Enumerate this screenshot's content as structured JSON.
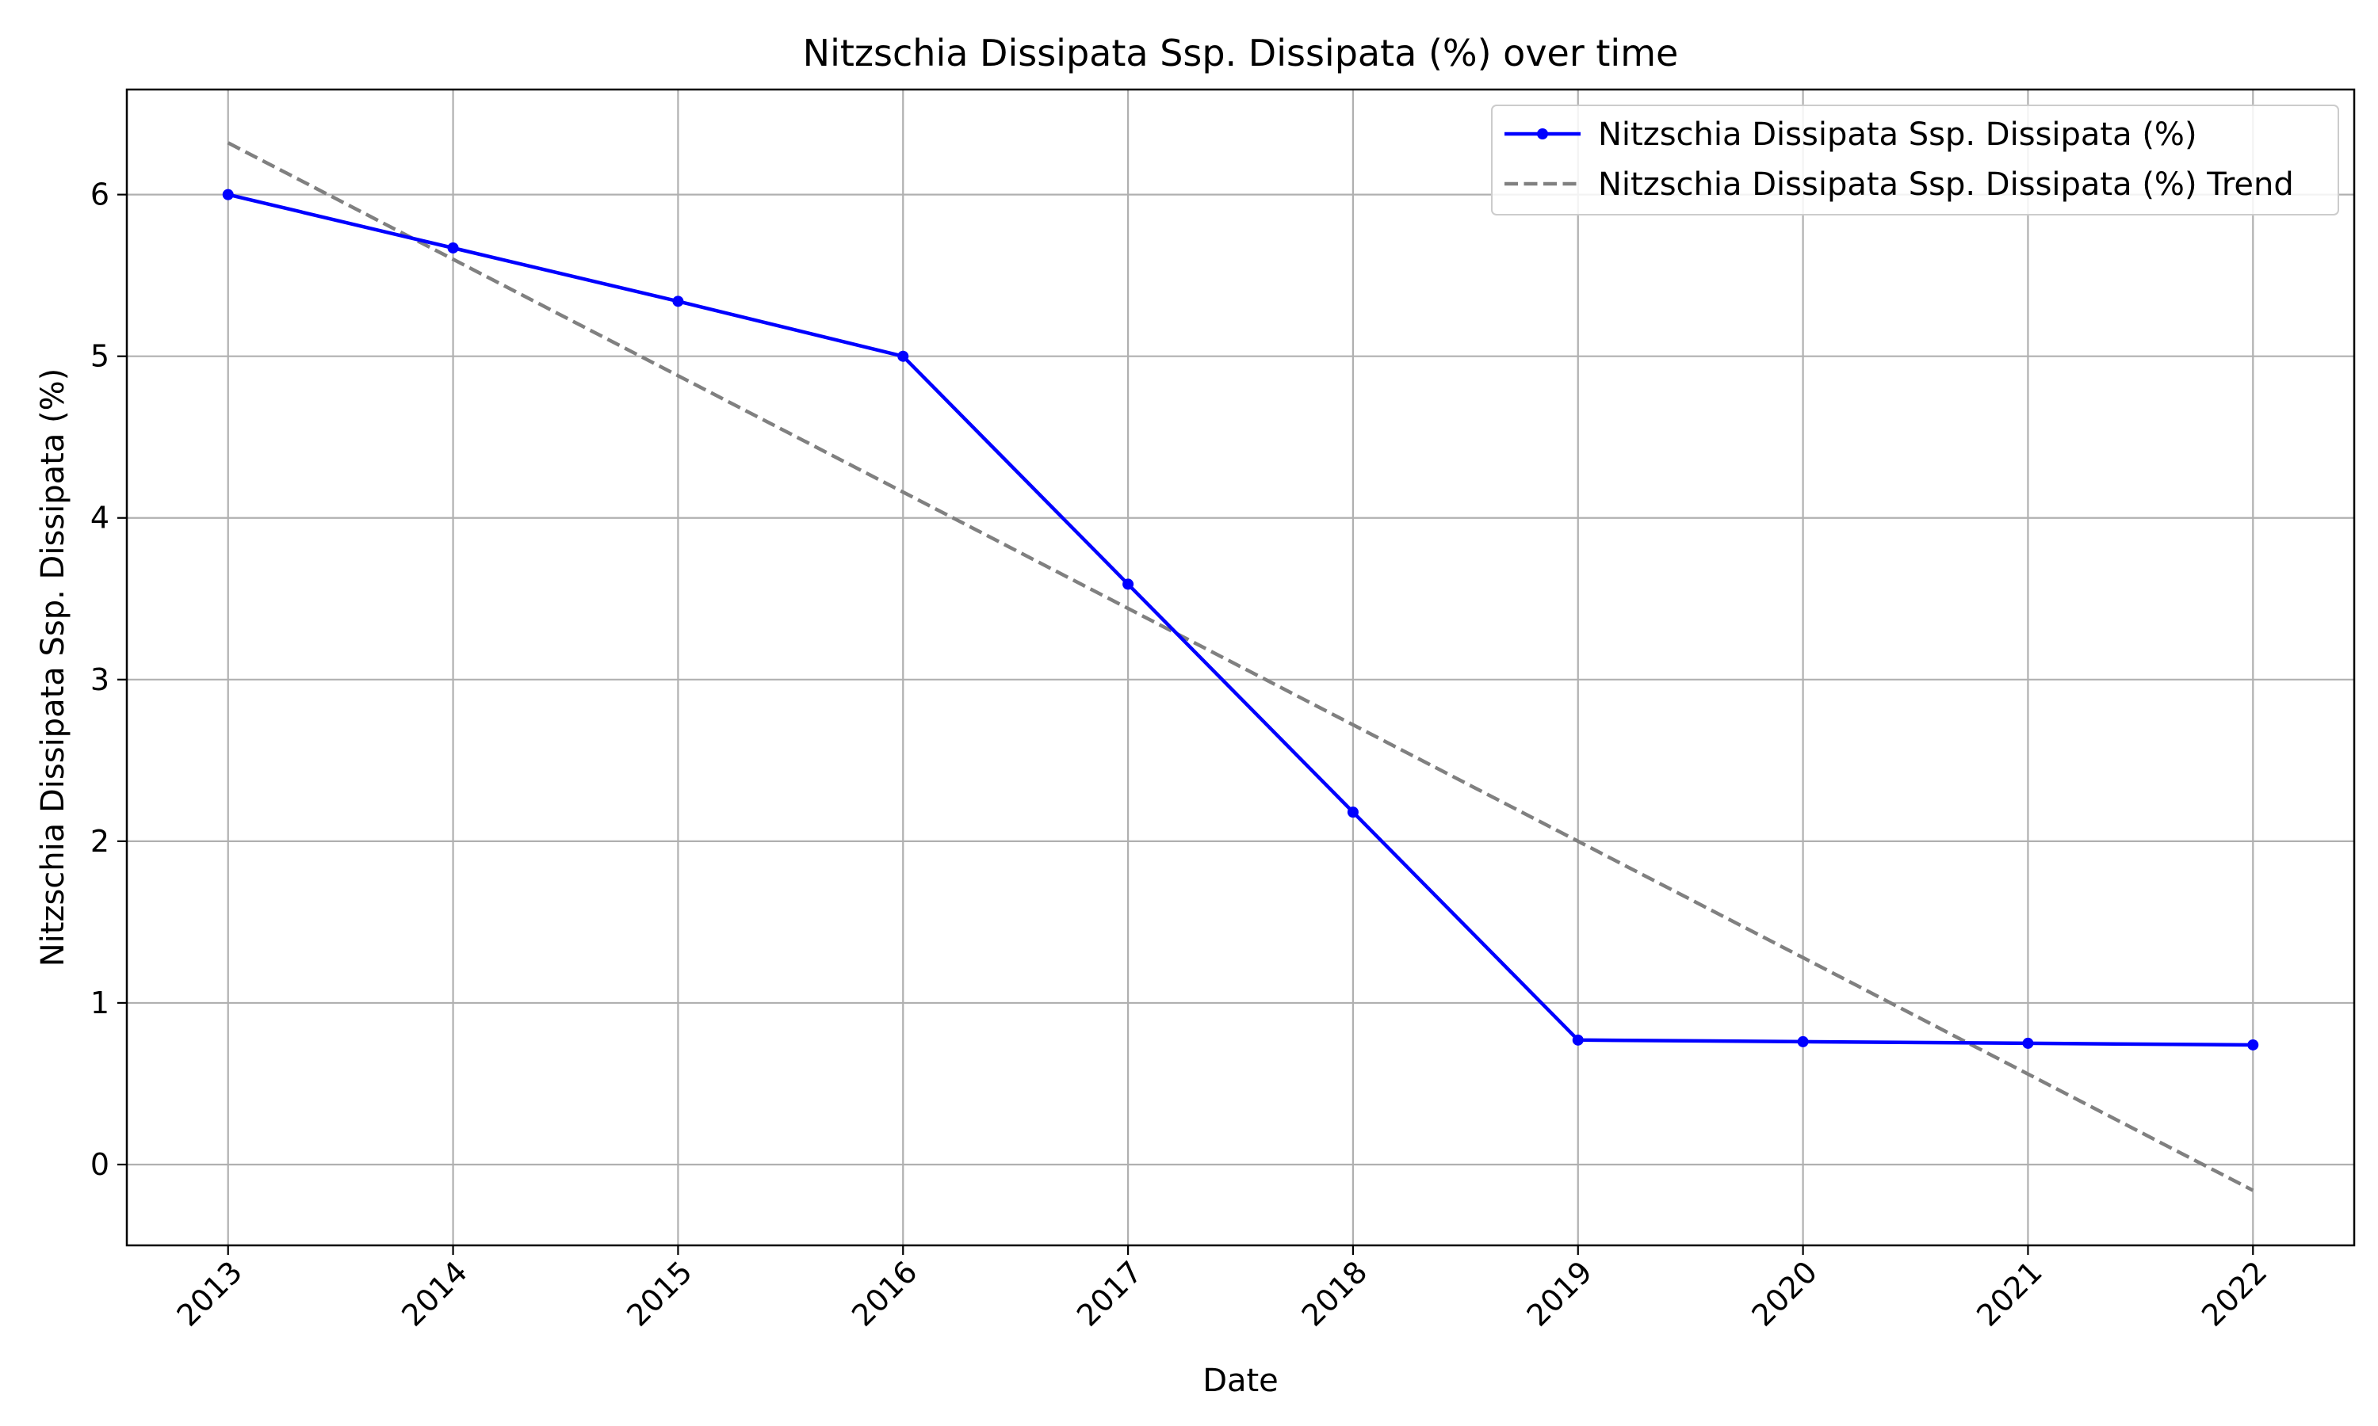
{
  "chart_data": {
    "type": "line",
    "title": "Nitzschia Dissipata Ssp. Dissipata (%) over time",
    "xlabel": "Date",
    "ylabel": "Nitzschia Dissipata Ssp. Dissipata (%)",
    "x": [
      "2013",
      "2014",
      "2015",
      "2016",
      "2017",
      "2018",
      "2019",
      "2020",
      "2021",
      "2022"
    ],
    "xlim": [
      2012.55,
      2022.45
    ],
    "ylim": [
      -0.5,
      6.65
    ],
    "yticks": [
      0,
      1,
      2,
      3,
      4,
      5,
      6
    ],
    "grid": true,
    "legend_position": "top-right",
    "series": [
      {
        "name": "Nitzschia Dissipata Ssp. Dissipata (%)",
        "values": [
          6.0,
          5.67,
          5.34,
          5.0,
          3.59,
          2.18,
          0.77,
          0.76,
          0.75,
          0.74
        ],
        "color": "#0000ff",
        "style": "solid",
        "marker": "dot"
      },
      {
        "name": "Nitzschia Dissipata Ssp. Dissipata (%) Trend",
        "values": [
          6.32,
          5.6,
          4.88,
          4.16,
          3.44,
          2.72,
          2.0,
          1.28,
          0.56,
          -0.16
        ],
        "color": "#808080",
        "style": "dashed",
        "marker": "none"
      }
    ]
  }
}
